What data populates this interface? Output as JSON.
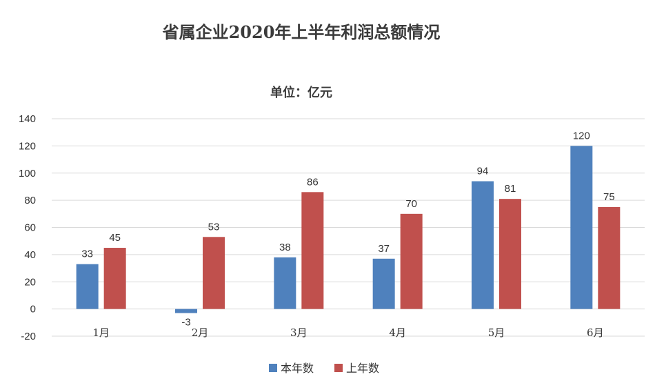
{
  "chart_data": {
    "type": "bar",
    "title": "省属企业2020年上半年利润总额情况",
    "subtitle": "单位：亿元",
    "categories": [
      "1月",
      "2月",
      "3月",
      "4月",
      "5月",
      "6月"
    ],
    "series": [
      {
        "name": "本年数",
        "values": [
          33,
          -3,
          38,
          37,
          94,
          120
        ],
        "color": "#4f81bd"
      },
      {
        "name": "上年数",
        "values": [
          45,
          53,
          86,
          70,
          81,
          75
        ],
        "color": "#c0504d"
      }
    ],
    "ylim": [
      -20,
      140
    ],
    "yticks": [
      -20,
      0,
      20,
      40,
      60,
      80,
      100,
      120,
      140
    ],
    "grid": true,
    "legend_position": "bottom"
  }
}
